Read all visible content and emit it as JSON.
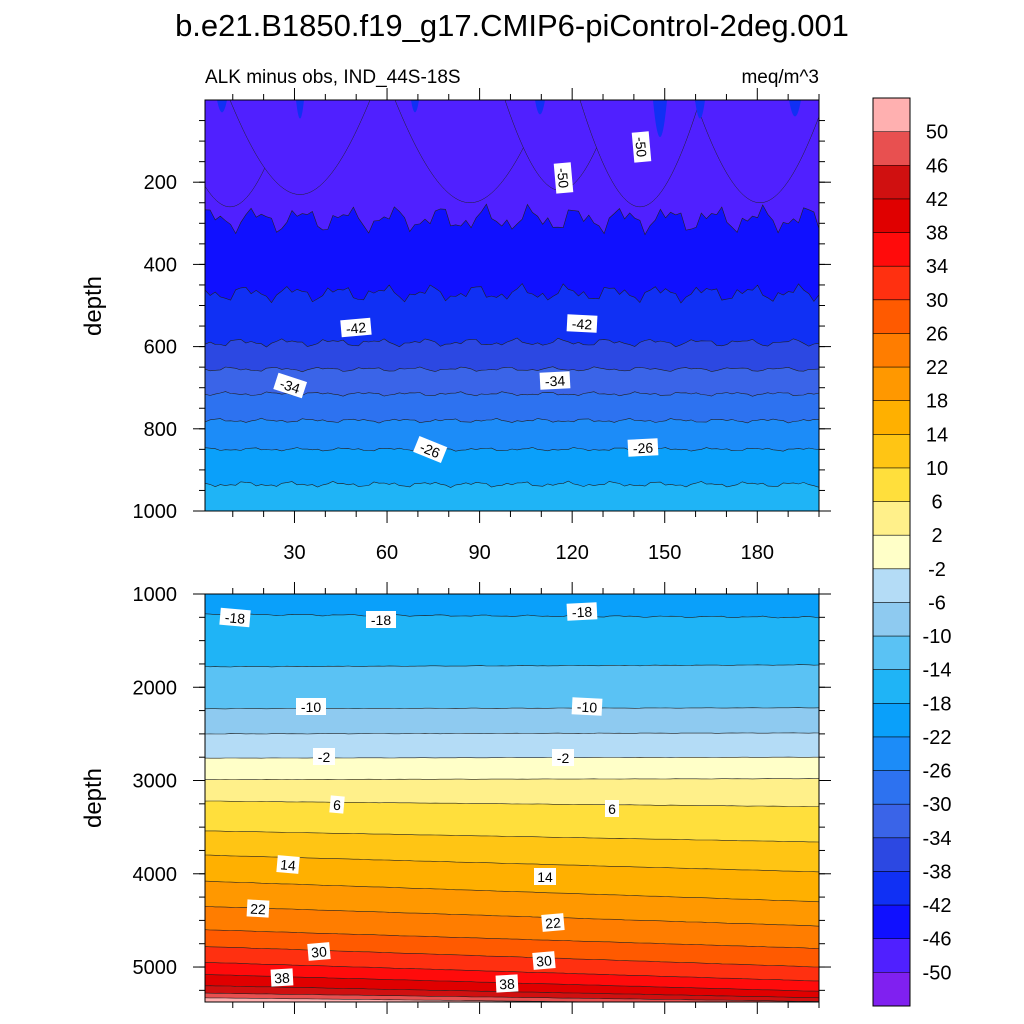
{
  "chart_data": {
    "type": "contour",
    "title": "b.e21.B1850.f19_g17.CMIP6-piControl-2deg.001",
    "left_subtitle": "ALK minus obs, IND_44S-18S",
    "right_subtitle": "meq/m^3",
    "colorbar": {
      "levels": [
        "50",
        "46",
        "42",
        "38",
        "34",
        "30",
        "26",
        "22",
        "18",
        "14",
        "10",
        "6",
        "2",
        "-2",
        "-6",
        "-10",
        "-14",
        "-18",
        "-22",
        "-26",
        "-30",
        "-34",
        "-38",
        "-42",
        "-46",
        "-50"
      ],
      "colors": [
        "#ffb0b0",
        "#e85050",
        "#d01010",
        "#e00000",
        "#ff0b0b",
        "#ff3010",
        "#ff5a00",
        "#ff7d00",
        "#ff9800",
        "#ffb000",
        "#ffc514",
        "#ffdf3c",
        "#fff08a",
        "#ffffc8",
        "#b4dcf6",
        "#8ecaf0",
        "#5ac2f4",
        "#1fb4f6",
        "#0aa0fa",
        "#1c8cf8",
        "#2d72f0",
        "#3a64e8",
        "#2c48e2",
        "#1030f4",
        "#1010ff",
        "#5020ff",
        "#8020f0"
      ]
    },
    "panels": [
      {
        "name": "upper",
        "ylabel": "depth",
        "ylim": [
          0,
          1000
        ],
        "y_ticks": [
          "200",
          "400",
          "600",
          "800",
          "1000"
        ],
        "x_ticks": [
          "30",
          "60",
          "90",
          "120",
          "150",
          "180"
        ],
        "xlim": [
          1,
          200
        ],
        "contour_labels": [
          "-50",
          "-50",
          "-42",
          "-42",
          "-34",
          "-34",
          "-26",
          "-26"
        ]
      },
      {
        "name": "lower",
        "ylabel": "depth",
        "ylim": [
          1000,
          5375
        ],
        "y_ticks": [
          "1000",
          "2000",
          "3000",
          "4000",
          "5000"
        ],
        "xlim": [
          1,
          200
        ],
        "contour_labels": [
          "-18",
          "-18",
          "-18",
          "-10",
          "-10",
          "-2",
          "-2",
          "6",
          "6",
          "14",
          "14",
          "22",
          "22",
          "30",
          "30",
          "38",
          "38"
        ]
      }
    ]
  }
}
